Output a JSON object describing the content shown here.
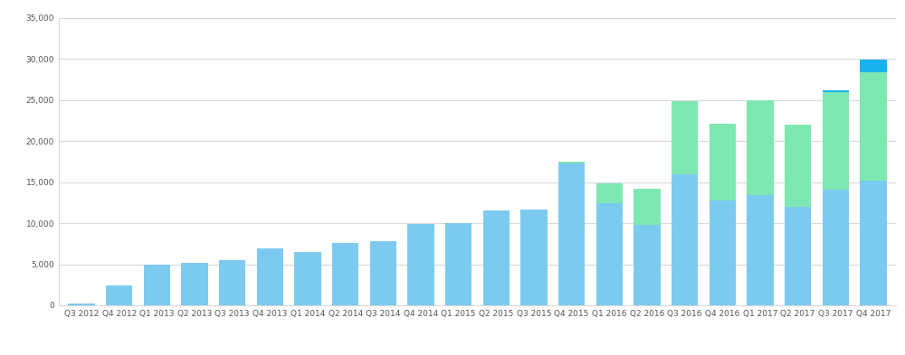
{
  "chart_data": {
    "type": "bar",
    "stacked": true,
    "grid": true,
    "categories": [
      "Q3 2012",
      "Q4 2012",
      "Q1 2013",
      "Q2 2013",
      "Q3 2013",
      "Q4 2013",
      "Q1 2014",
      "Q2 2014",
      "Q3 2014",
      "Q4 2014",
      "Q1 2015",
      "Q2 2015",
      "Q3 2015",
      "Q4 2015",
      "Q1 2016",
      "Q2 2016",
      "Q3 2016",
      "Q4 2016",
      "Q1 2017",
      "Q2 2017",
      "Q3 2017",
      "Q4 2017"
    ],
    "series": [
      {
        "color": "#7ccaf0",
        "values": [
          250,
          2400,
          4900,
          5150,
          5500,
          6900,
          6450,
          7550,
          7800,
          9850,
          10050,
          11550,
          11650,
          17300,
          12450,
          9750,
          15950,
          12700,
          13450,
          12000,
          14100,
          15200
        ]
      },
      {
        "color": "#7ee8b2",
        "values": [
          null,
          null,
          null,
          null,
          null,
          null,
          null,
          null,
          null,
          null,
          null,
          null,
          null,
          200,
          2400,
          4450,
          8850,
          9450,
          11550,
          10000,
          11850,
          13150
        ]
      },
      {
        "color": "#18b2ee",
        "values": [
          null,
          null,
          null,
          null,
          null,
          null,
          null,
          null,
          null,
          null,
          null,
          null,
          null,
          null,
          null,
          null,
          null,
          null,
          null,
          null,
          220,
          1550
        ]
      }
    ],
    "ylim": [
      0,
      35000
    ],
    "yticks": [
      0,
      {
        "value": 5000,
        "label": "5,000"
      },
      {
        "value": 10000,
        "label": "10,000"
      },
      {
        "value": 15000,
        "label": "15,000"
      },
      {
        "value": 20000,
        "label": "20,000"
      },
      {
        "value": 25000,
        "label": "25,000"
      },
      {
        "value": 30000,
        "label": "30,000"
      },
      {
        "value": 35000,
        "label": "35,000"
      }
    ]
  }
}
